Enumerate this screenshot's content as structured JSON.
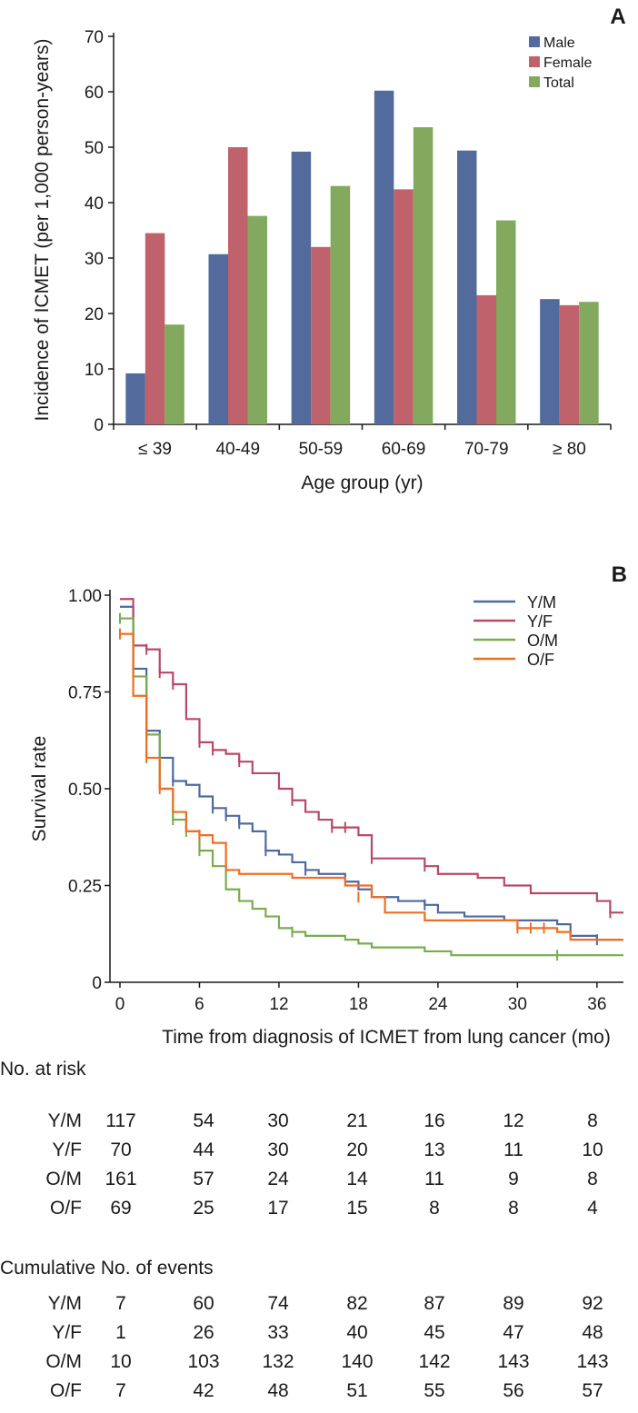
{
  "chart_data": [
    {
      "type": "bar",
      "panel_label": "A",
      "categories": [
        "≤ 39",
        "40-49",
        "50-59",
        "60-69",
        "70-79",
        "≥ 80"
      ],
      "series": [
        {
          "name": "Male",
          "color": "#526b9c",
          "values": [
            9.2,
            30.7,
            49.2,
            60.2,
            49.4,
            22.6
          ]
        },
        {
          "name": "Female",
          "color": "#c0626b",
          "values": [
            34.5,
            50.0,
            32.0,
            42.4,
            23.3,
            21.5
          ]
        },
        {
          "name": "Total",
          "color": "#82a95d",
          "values": [
            18.0,
            37.6,
            43.0,
            53.6,
            36.8,
            22.1
          ]
        }
      ],
      "xlabel": "Age group (yr)",
      "ylabel": "Incidence of ICMET (per 1,000 person-years)",
      "ylim": [
        0,
        70
      ],
      "yticks": [
        0,
        10,
        20,
        30,
        40,
        50,
        60,
        70
      ],
      "legend": "top-right"
    },
    {
      "type": "line",
      "panel_label": "B",
      "xlabel": "Time from diagnosis of ICMET from lung cancer (mo)",
      "ylabel": "Survival rate",
      "xlim": [
        0,
        38
      ],
      "ylim": [
        0,
        1
      ],
      "xticks": [
        0,
        6,
        12,
        18,
        24,
        30,
        36
      ],
      "yticks": [
        "0",
        "0.25",
        "0.50",
        "0.75",
        "1.00"
      ],
      "legend": "top-right",
      "series": [
        {
          "name": "Y/M",
          "color": "#4e6a9e",
          "steps": [
            [
              0,
              0.97
            ],
            [
              1,
              0.81
            ],
            [
              2,
              0.65
            ],
            [
              3,
              0.58
            ],
            [
              4,
              0.52
            ],
            [
              5,
              0.51
            ],
            [
              6,
              0.48
            ],
            [
              7,
              0.45
            ],
            [
              8,
              0.43
            ],
            [
              9,
              0.41
            ],
            [
              10,
              0.39
            ],
            [
              11,
              0.34
            ],
            [
              12,
              0.33
            ],
            [
              13,
              0.31
            ],
            [
              14,
              0.29
            ],
            [
              15,
              0.28
            ],
            [
              17,
              0.26
            ],
            [
              18,
              0.24
            ],
            [
              19,
              0.22
            ],
            [
              21,
              0.21
            ],
            [
              23,
              0.2
            ],
            [
              24,
              0.18
            ],
            [
              26,
              0.17
            ],
            [
              29,
              0.16
            ],
            [
              33,
              0.15
            ],
            [
              34,
              0.12
            ],
            [
              36,
              0.11
            ],
            [
              38,
              0.11
            ]
          ],
          "censor": [
            [
              3,
              0.58
            ],
            [
              4,
              0.52
            ],
            [
              7,
              0.45
            ],
            [
              8,
              0.43
            ],
            [
              9,
              0.41
            ],
            [
              11,
              0.34
            ],
            [
              14,
              0.29
            ],
            [
              23,
              0.2
            ],
            [
              36,
              0.11
            ]
          ]
        },
        {
          "name": "Y/F",
          "color": "#b64a68",
          "steps": [
            [
              0,
              0.99
            ],
            [
              1,
              0.87
            ],
            [
              2,
              0.86
            ],
            [
              3,
              0.8
            ],
            [
              4,
              0.77
            ],
            [
              5,
              0.68
            ],
            [
              6,
              0.62
            ],
            [
              7,
              0.6
            ],
            [
              8,
              0.59
            ],
            [
              9,
              0.57
            ],
            [
              10,
              0.54
            ],
            [
              12,
              0.5
            ],
            [
              13,
              0.47
            ],
            [
              14,
              0.44
            ],
            [
              15,
              0.42
            ],
            [
              16,
              0.4
            ],
            [
              18,
              0.38
            ],
            [
              19,
              0.32
            ],
            [
              23,
              0.3
            ],
            [
              24,
              0.28
            ],
            [
              27,
              0.27
            ],
            [
              29,
              0.25
            ],
            [
              31,
              0.23
            ],
            [
              36,
              0.21
            ],
            [
              37,
              0.18
            ],
            [
              38,
              0.18
            ]
          ],
          "censor": [
            [
              1,
              0.87
            ],
            [
              2,
              0.86
            ],
            [
              3,
              0.8
            ],
            [
              4,
              0.77
            ],
            [
              6,
              0.62
            ],
            [
              7,
              0.6
            ],
            [
              9,
              0.57
            ],
            [
              13,
              0.47
            ],
            [
              16,
              0.4
            ],
            [
              17,
              0.4
            ],
            [
              19,
              0.32
            ],
            [
              23,
              0.3
            ],
            [
              37,
              0.18
            ]
          ]
        },
        {
          "name": "O/M",
          "color": "#7aac4f",
          "steps": [
            [
              0,
              0.94
            ],
            [
              1,
              0.79
            ],
            [
              2,
              0.64
            ],
            [
              3,
              0.5
            ],
            [
              4,
              0.42
            ],
            [
              5,
              0.39
            ],
            [
              6,
              0.34
            ],
            [
              7,
              0.3
            ],
            [
              8,
              0.24
            ],
            [
              9,
              0.21
            ],
            [
              10,
              0.19
            ],
            [
              11,
              0.17
            ],
            [
              12,
              0.14
            ],
            [
              13,
              0.13
            ],
            [
              14,
              0.12
            ],
            [
              17,
              0.11
            ],
            [
              18,
              0.1
            ],
            [
              19,
              0.09
            ],
            [
              23,
              0.08
            ],
            [
              25,
              0.07
            ],
            [
              38,
              0.07
            ]
          ],
          "censor": [
            [
              0,
              0.94
            ],
            [
              1,
              0.79
            ],
            [
              2,
              0.64
            ],
            [
              4,
              0.42
            ],
            [
              5,
              0.39
            ],
            [
              6,
              0.34
            ],
            [
              13,
              0.13
            ],
            [
              33,
              0.07
            ]
          ]
        },
        {
          "name": "O/F",
          "color": "#ef6e23",
          "steps": [
            [
              0,
              0.9
            ],
            [
              1,
              0.74
            ],
            [
              2,
              0.58
            ],
            [
              3,
              0.5
            ],
            [
              4,
              0.44
            ],
            [
              5,
              0.39
            ],
            [
              6,
              0.38
            ],
            [
              7,
              0.36
            ],
            [
              8,
              0.29
            ],
            [
              9,
              0.28
            ],
            [
              13,
              0.27
            ],
            [
              17,
              0.25
            ],
            [
              19,
              0.22
            ],
            [
              20,
              0.18
            ],
            [
              23,
              0.16
            ],
            [
              30,
              0.14
            ],
            [
              33,
              0.13
            ],
            [
              34,
              0.11
            ],
            [
              38,
              0.11
            ]
          ],
          "censor": [
            [
              0,
              0.9
            ],
            [
              2,
              0.58
            ],
            [
              3,
              0.5
            ],
            [
              6,
              0.38
            ],
            [
              18,
              0.22
            ],
            [
              30,
              0.14
            ],
            [
              31,
              0.14
            ],
            [
              32,
              0.14
            ]
          ]
        }
      ]
    }
  ],
  "risk_table": {
    "title": "No. at risk",
    "rows": [
      {
        "label": "Y/M",
        "values": [
          "117",
          "54",
          "30",
          "21",
          "16",
          "12",
          "8"
        ]
      },
      {
        "label": "Y/F",
        "values": [
          "70",
          "44",
          "30",
          "20",
          "13",
          "11",
          "10"
        ]
      },
      {
        "label": "O/M",
        "values": [
          "161",
          "57",
          "24",
          "14",
          "11",
          "9",
          "8"
        ]
      },
      {
        "label": "O/F",
        "values": [
          "69",
          "25",
          "17",
          "15",
          "8",
          "8",
          "4"
        ]
      }
    ]
  },
  "events_table": {
    "title": "Cumulative No. of events",
    "rows": [
      {
        "label": "Y/M",
        "values": [
          "7",
          "60",
          "74",
          "82",
          "87",
          "89",
          "92"
        ]
      },
      {
        "label": "Y/F",
        "values": [
          "1",
          "26",
          "33",
          "40",
          "45",
          "47",
          "48"
        ]
      },
      {
        "label": "O/M",
        "values": [
          "10",
          "103",
          "132",
          "140",
          "142",
          "143",
          "143"
        ]
      },
      {
        "label": "O/F",
        "values": [
          "7",
          "42",
          "48",
          "51",
          "55",
          "56",
          "57"
        ]
      }
    ]
  }
}
